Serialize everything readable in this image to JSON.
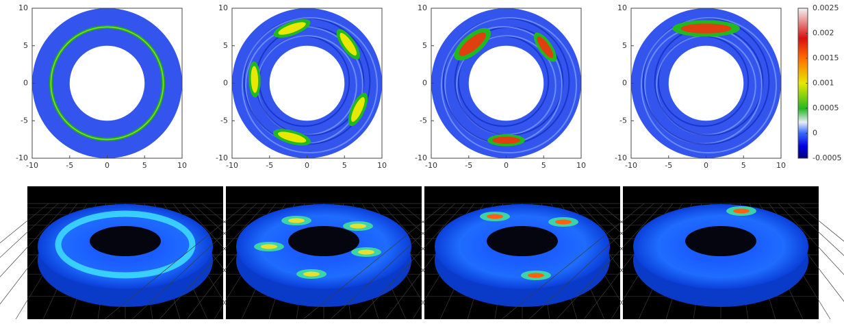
{
  "chart_data": [
    {
      "type": "heatmap",
      "xlim": [
        -10,
        10
      ],
      "ylim": [
        -10,
        10
      ],
      "xticks": [
        -10,
        -5,
        0,
        5,
        10
      ],
      "yticks": [
        -10,
        -5,
        0,
        5,
        10
      ]
    },
    {
      "type": "heatmap",
      "xlim": [
        -10,
        10
      ],
      "ylim": [
        -10,
        10
      ],
      "xticks": [
        -10,
        -5,
        0,
        5,
        10
      ],
      "yticks": [
        -10,
        -5,
        0,
        5,
        10
      ]
    },
    {
      "type": "heatmap",
      "xlim": [
        -10,
        10
      ],
      "ylim": [
        -10,
        10
      ],
      "xticks": [
        -10,
        -5,
        0,
        5,
        10
      ],
      "yticks": [
        -10,
        -5,
        0,
        5,
        10
      ]
    },
    {
      "type": "heatmap",
      "xlim": [
        -10,
        10
      ],
      "ylim": [
        -10,
        10
      ],
      "xticks": [
        -10,
        -5,
        0,
        5,
        10
      ],
      "yticks": [
        -10,
        -5,
        0,
        5,
        10
      ],
      "colorbar": {
        "lim": [
          -0.0005,
          0.0025
        ],
        "ticks": [
          0.0025,
          0.002,
          0.0015,
          0.001,
          0.0005,
          0,
          -0.0005
        ]
      }
    }
  ]
}
